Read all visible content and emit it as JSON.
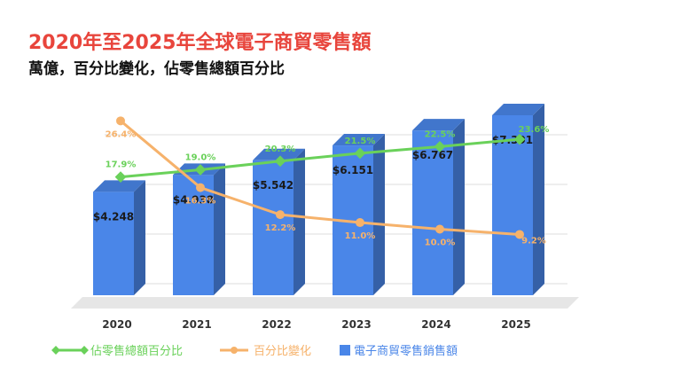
{
  "header": {
    "title": "2020年至2025年全球電子商貿零售額",
    "subtitle": "萬億，百分比變化，佔零售總額百分比"
  },
  "chart_data": {
    "type": "bar",
    "categories": [
      "2020",
      "2021",
      "2022",
      "2023",
      "2024",
      "2025"
    ],
    "series": [
      {
        "name": "電子商貿零售銷售額",
        "kind": "bar",
        "color": "#4a86e8",
        "values": [
          4.248,
          4.938,
          5.542,
          6.151,
          6.767,
          7.391
        ],
        "labels": [
          "$4.248",
          "$4.938",
          "$5.542",
          "$6.151",
          "$6.767",
          "$7.391"
        ]
      },
      {
        "name": "佔零售總額百分比",
        "kind": "line",
        "color": "#6ad15a",
        "values": [
          17.9,
          19.0,
          20.3,
          21.5,
          22.5,
          23.6
        ],
        "labels": [
          "17.9%",
          "19.0%",
          "20.3%",
          "21.5%",
          "22.5%",
          "23.6%"
        ]
      },
      {
        "name": "百分比變化",
        "kind": "line",
        "color": "#f6b26b",
        "values": [
          26.4,
          16.3,
          12.2,
          11.0,
          10.0,
          9.2
        ],
        "labels": [
          "26.4%",
          "16.3%",
          "12.2%",
          "11.0%",
          "10.0%",
          "9.2%"
        ]
      }
    ],
    "bar_ylim": [
      0,
      8
    ],
    "line_ylim": [
      0,
      40
    ],
    "grid": true,
    "legend_position": "bottom-left"
  }
}
